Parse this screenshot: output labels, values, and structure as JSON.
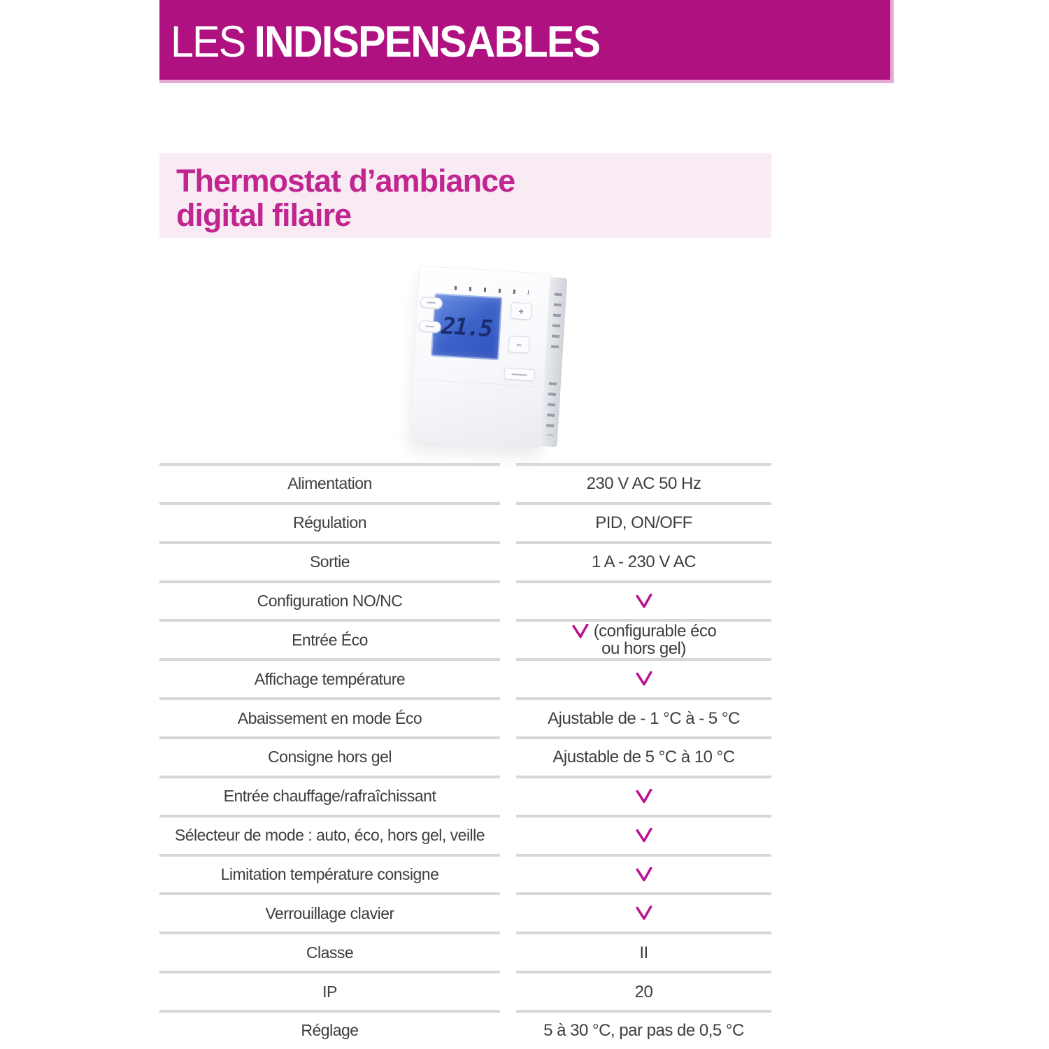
{
  "header": {
    "prefix": "LES",
    "title": "INDISPENSABLES"
  },
  "product": {
    "title_line1": "Thermostat d’ambiance",
    "title_line2": "digital filaire",
    "photo": {
      "display_value": "21.5",
      "plus_label": "+",
      "minus_label": "−"
    }
  },
  "colors": {
    "banner_bg": "#AF1280",
    "banner_edge": "#E5ABD2",
    "title_box_bg": "#F8EBF4",
    "title_text": "#C02590",
    "check": "#BC1090",
    "divider": "#D7D7D7",
    "body_text": "#3E3E3E",
    "lcd_blue": "#3C63C9"
  },
  "spec_table": {
    "rows": [
      {
        "label": "Alimentation",
        "check": false,
        "value": "230 V AC 50 Hz"
      },
      {
        "label": "Régulation",
        "check": false,
        "value": "PID, ON/OFF"
      },
      {
        "label": "Sortie",
        "check": false,
        "value": "1 A - 230 V AC"
      },
      {
        "label": "Configuration NO/NC",
        "check": true
      },
      {
        "label": "Entrée Éco",
        "check": true,
        "value": "(configurable éco",
        "value_line2": "ou hors gel)"
      },
      {
        "label": "Affichage température",
        "check": true
      },
      {
        "label": "Abaissement en mode Éco",
        "check": false,
        "value": "Ajustable de - 1 °C à - 5 °C"
      },
      {
        "label": "Consigne hors gel",
        "check": false,
        "value": "Ajustable de 5 °C à 10 °C"
      },
      {
        "label": "Entrée chauffage/rafraîchissant",
        "check": true
      },
      {
        "label": "Sélecteur de mode : auto, éco, hors gel, veille",
        "check": true
      },
      {
        "label": "Limitation température consigne",
        "check": true
      },
      {
        "label": "Verrouillage clavier",
        "check": true
      },
      {
        "label": "Classe",
        "check": false,
        "value": "II"
      },
      {
        "label": "IP",
        "check": false,
        "value": "20"
      },
      {
        "label": "Réglage",
        "check": false,
        "value": "5 à 30 °C, par pas de 0,5 °C"
      }
    ]
  }
}
